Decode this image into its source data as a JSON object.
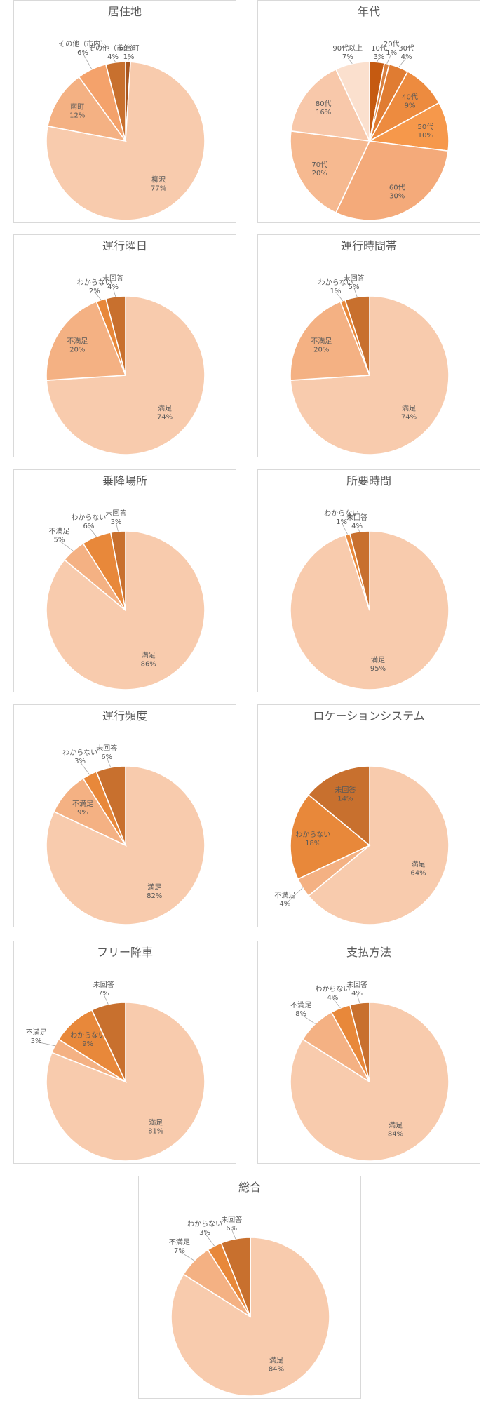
{
  "colors": {
    "c1": "#f8cbad",
    "c2": "#f4b183",
    "c3": "#f4a26b",
    "c4": "#e8883a",
    "c5": "#c55a11",
    "c6": "#c8702e",
    "c7": "#fbe5d6",
    "leader": "#a6a6a6"
  },
  "chart_data": [
    {
      "type": "pie",
      "title": "居住地",
      "slices": [
        {
          "label": "向台町",
          "value": 1,
          "pct": "1%",
          "color": "#a8541c"
        },
        {
          "label": "柳沢",
          "value": 77,
          "pct": "77%",
          "color": "#f8cbad"
        },
        {
          "label": "南町",
          "value": 12,
          "pct": "12%",
          "color": "#f4b183"
        },
        {
          "label": "その他（市内）",
          "value": 6,
          "pct": "6%",
          "color": "#f4a26b"
        },
        {
          "label": "その他（市外）",
          "value": 4,
          "pct": "4%",
          "color": "#c8702e"
        }
      ]
    },
    {
      "type": "pie",
      "title": "年代",
      "slices": [
        {
          "label": "10代",
          "value": 3,
          "pct": "3%",
          "color": "#c55a11"
        },
        {
          "label": "20代",
          "value": 1,
          "pct": "1%",
          "color": "#d9803f"
        },
        {
          "label": "30代",
          "value": 4,
          "pct": "4%",
          "color": "#e07c32"
        },
        {
          "label": "40代",
          "value": 9,
          "pct": "9%",
          "color": "#ed8b3f"
        },
        {
          "label": "50代",
          "value": 10,
          "pct": "10%",
          "color": "#f6984b"
        },
        {
          "label": "60代",
          "value": 30,
          "pct": "30%",
          "color": "#f4aa7a"
        },
        {
          "label": "70代",
          "value": 20,
          "pct": "20%",
          "color": "#f6b990"
        },
        {
          "label": "80代",
          "value": 16,
          "pct": "16%",
          "color": "#f8c8aa"
        },
        {
          "label": "90代以上",
          "value": 7,
          "pct": "7%",
          "color": "#fbe0ce"
        }
      ]
    },
    {
      "type": "pie",
      "title": "運行曜日",
      "slices": [
        {
          "label": "満足",
          "value": 74,
          "pct": "74%",
          "color": "#f8cbad"
        },
        {
          "label": "不満足",
          "value": 20,
          "pct": "20%",
          "color": "#f4b183"
        },
        {
          "label": "わからない",
          "value": 2,
          "pct": "2%",
          "color": "#e8883a"
        },
        {
          "label": "未回答",
          "value": 4,
          "pct": "4%",
          "color": "#c8702e"
        }
      ]
    },
    {
      "type": "pie",
      "title": "運行時間帯",
      "slices": [
        {
          "label": "満足",
          "value": 74,
          "pct": "74%",
          "color": "#f8cbad"
        },
        {
          "label": "不満足",
          "value": 20,
          "pct": "20%",
          "color": "#f4b183"
        },
        {
          "label": "わからない",
          "value": 1,
          "pct": "1%",
          "color": "#e8883a"
        },
        {
          "label": "未回答",
          "value": 5,
          "pct": "5%",
          "color": "#c8702e"
        }
      ]
    },
    {
      "type": "pie",
      "title": "乗降場所",
      "slices": [
        {
          "label": "満足",
          "value": 86,
          "pct": "86%",
          "color": "#f8cbad"
        },
        {
          "label": "不満足",
          "value": 5,
          "pct": "5%",
          "color": "#f4b183"
        },
        {
          "label": "わからない",
          "value": 6,
          "pct": "6%",
          "color": "#e8883a"
        },
        {
          "label": "未回答",
          "value": 3,
          "pct": "3%",
          "color": "#c8702e"
        }
      ]
    },
    {
      "type": "pie",
      "title": "所要時間",
      "slices": [
        {
          "label": "満足",
          "value": 95,
          "pct": "95%",
          "color": "#f8cbad"
        },
        {
          "label": "わからない",
          "value": 1,
          "pct": "1%",
          "color": "#e8883a"
        },
        {
          "label": "未回答",
          "value": 4,
          "pct": "4%",
          "color": "#c8702e"
        }
      ]
    },
    {
      "type": "pie",
      "title": "運行頻度",
      "slices": [
        {
          "label": "満足",
          "value": 82,
          "pct": "82%",
          "color": "#f8cbad"
        },
        {
          "label": "不満足",
          "value": 9,
          "pct": "9%",
          "color": "#f4b183"
        },
        {
          "label": "わからない",
          "value": 3,
          "pct": "3%",
          "color": "#e8883a"
        },
        {
          "label": "未回答",
          "value": 6,
          "pct": "6%",
          "color": "#c8702e"
        }
      ]
    },
    {
      "type": "pie",
      "title": "ロケーションシステム",
      "slices": [
        {
          "label": "満足",
          "value": 64,
          "pct": "64%",
          "color": "#f8cbad"
        },
        {
          "label": "不満足",
          "value": 4,
          "pct": "4%",
          "color": "#f4b183"
        },
        {
          "label": "わからない",
          "value": 18,
          "pct": "18%",
          "color": "#e8883a"
        },
        {
          "label": "未回答",
          "value": 14,
          "pct": "14%",
          "color": "#c8702e"
        }
      ]
    },
    {
      "type": "pie",
      "title": "フリー降車",
      "slices": [
        {
          "label": "満足",
          "value": 81,
          "pct": "81%",
          "color": "#f8cbad"
        },
        {
          "label": "不満足",
          "value": 3,
          "pct": "3%",
          "color": "#f4b183"
        },
        {
          "label": "わからない",
          "value": 9,
          "pct": "9%",
          "color": "#e8883a"
        },
        {
          "label": "未回答",
          "value": 7,
          "pct": "7%",
          "color": "#c8702e"
        }
      ]
    },
    {
      "type": "pie",
      "title": "支払方法",
      "slices": [
        {
          "label": "満足",
          "value": 84,
          "pct": "84%",
          "color": "#f8cbad"
        },
        {
          "label": "不満足",
          "value": 8,
          "pct": "8%",
          "color": "#f4b183"
        },
        {
          "label": "わからない",
          "value": 4,
          "pct": "4%",
          "color": "#e8883a"
        },
        {
          "label": "未回答",
          "value": 4,
          "pct": "4%",
          "color": "#c8702e"
        }
      ]
    },
    {
      "type": "pie",
      "title": "総合",
      "slices": [
        {
          "label": "満足",
          "value": 84,
          "pct": "84%",
          "color": "#f8cbad"
        },
        {
          "label": "不満足",
          "value": 7,
          "pct": "7%",
          "color": "#f4b183"
        },
        {
          "label": "わからない",
          "value": 3,
          "pct": "3%",
          "color": "#e8883a"
        },
        {
          "label": "未回答",
          "value": 6,
          "pct": "6%",
          "color": "#c8702e"
        }
      ]
    }
  ]
}
